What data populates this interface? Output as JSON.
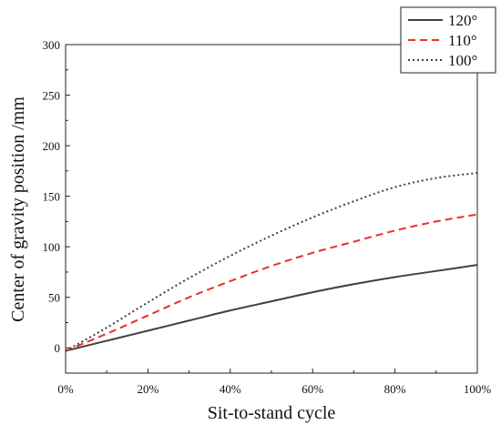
{
  "chart_data": {
    "type": "line",
    "title": "",
    "xlabel": "Sit-to-stand cycle",
    "ylabel": "Center of gravity position /mm",
    "xlim": [
      0,
      100
    ],
    "ylim": [
      -25,
      300
    ],
    "x_ticks": [
      0,
      20,
      40,
      60,
      80,
      100
    ],
    "x_tick_labels": [
      "0%",
      "20%",
      "40%",
      "60%",
      "80%",
      "100%"
    ],
    "y_ticks": [
      0,
      50,
      100,
      150,
      200,
      250,
      300
    ],
    "y_tick_labels": [
      "0",
      "50",
      "100",
      "150",
      "200",
      "250",
      "300"
    ],
    "grid": false,
    "legend_position": "top-right",
    "x": [
      0,
      10,
      20,
      30,
      40,
      50,
      60,
      70,
      80,
      90,
      100
    ],
    "series": [
      {
        "name": "120°",
        "style": "solid",
        "color": "#404040",
        "values": [
          -3,
          7,
          17,
          27,
          37,
          46,
          55,
          63,
          70,
          76,
          82
        ]
      },
      {
        "name": "110°",
        "style": "dashed",
        "color": "#e8302f",
        "values": [
          -3,
          14,
          32,
          50,
          66,
          81,
          94,
          105,
          116,
          125,
          132
        ]
      },
      {
        "name": "100°",
        "style": "dotted",
        "color": "#404040",
        "values": [
          -3,
          20,
          45,
          69,
          91,
          111,
          129,
          145,
          159,
          168,
          173
        ]
      }
    ]
  }
}
